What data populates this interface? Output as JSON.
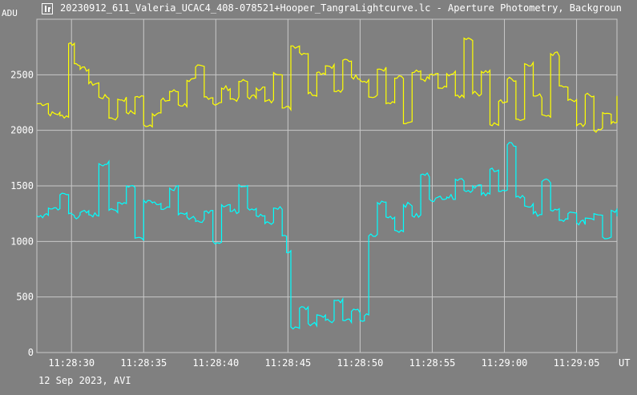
{
  "window": {
    "title": "20230912_611_Valeria_UCAC4_408-078521+Hooper_TangraLightcurve.lc - Aperture Photometry, Backgroun",
    "icon": "lightcurve-app-icon"
  },
  "footer": {
    "date_line": "12 Sep 2023, AVI"
  },
  "chart_data": {
    "type": "line",
    "ylabel": "ADU",
    "xlabel": "UT",
    "ylim": [
      0,
      3000
    ],
    "yticks": [
      0,
      500,
      1000,
      1500,
      2000,
      2500
    ],
    "xlim": [
      27.6,
      67.8
    ],
    "x_unit": "seconds after 11:28:00",
    "xticks": [
      {
        "value": 30,
        "label": "11:28:30"
      },
      {
        "value": 35,
        "label": "11:28:35"
      },
      {
        "value": 40,
        "label": "11:28:40"
      },
      {
        "value": 45,
        "label": "11:28:45"
      },
      {
        "value": 50,
        "label": "11:28:50"
      },
      {
        "value": 55,
        "label": "11:28:55"
      },
      {
        "value": 60,
        "label": "11:29:00"
      },
      {
        "value": 65,
        "label": "11:29:05"
      }
    ],
    "grid": true,
    "series": [
      {
        "color": "#ffff00",
        "x": [
          27.6,
          28.4,
          29.2,
          29.8,
          30.2,
          30.6,
          31.2,
          31.9,
          32.6,
          33.2,
          33.8,
          34.4,
          35.0,
          35.6,
          36.2,
          36.8,
          37.4,
          38.0,
          38.6,
          39.2,
          39.8,
          40.4,
          41.0,
          41.6,
          42.2,
          42.8,
          43.4,
          44.0,
          44.6,
          45.2,
          45.8,
          46.4,
          47.0,
          47.6,
          48.2,
          48.8,
          49.4,
          50.0,
          50.6,
          51.2,
          51.8,
          52.4,
          53.0,
          53.6,
          54.2,
          54.8,
          55.4,
          56.0,
          56.6,
          57.2,
          57.8,
          58.4,
          59.0,
          59.6,
          60.2,
          60.8,
          61.4,
          62.0,
          62.6,
          63.2,
          63.8,
          64.4,
          65.0,
          65.6,
          66.2,
          66.8,
          67.4,
          67.8
        ],
        "values": [
          2240,
          2150,
          2130,
          2780,
          2600,
          2550,
          2420,
          2300,
          2110,
          2280,
          2160,
          2300,
          2050,
          2150,
          2270,
          2350,
          2230,
          2450,
          2570,
          2300,
          2240,
          2380,
          2280,
          2440,
          2300,
          2380,
          2260,
          2520,
          2200,
          2760,
          2700,
          2330,
          2520,
          2580,
          2350,
          2630,
          2480,
          2450,
          2300,
          2550,
          2240,
          2470,
          2060,
          2520,
          2460,
          2500,
          2380,
          2510,
          2310,
          2830,
          2330,
          2530,
          2050,
          2260,
          2460,
          2100,
          2600,
          2310,
          2140,
          2690,
          2400,
          2270,
          2040,
          2320,
          2000,
          2160,
          2060,
          2300
        ]
      },
      {
        "color": "#00ffff",
        "x": [
          27.6,
          28.4,
          29.2,
          29.8,
          30.2,
          30.6,
          31.2,
          31.9,
          32.6,
          33.2,
          33.8,
          34.4,
          35.0,
          35.6,
          36.2,
          36.8,
          37.4,
          38.0,
          38.6,
          39.2,
          39.8,
          40.4,
          41.0,
          41.6,
          42.2,
          42.8,
          43.4,
          44.0,
          44.6,
          44.9,
          45.2,
          45.8,
          46.4,
          47.0,
          47.6,
          48.2,
          48.8,
          49.4,
          50.0,
          50.3,
          50.6,
          51.2,
          51.8,
          52.4,
          53.0,
          53.6,
          54.2,
          54.8,
          55.4,
          56.0,
          56.6,
          57.2,
          57.8,
          58.4,
          59.0,
          59.6,
          60.2,
          60.8,
          61.4,
          62.0,
          62.6,
          63.2,
          63.8,
          64.4,
          65.0,
          65.6,
          66.2,
          66.8,
          67.4,
          67.8
        ],
        "values": [
          1230,
          1300,
          1420,
          1250,
          1220,
          1260,
          1240,
          1700,
          1280,
          1350,
          1500,
          1030,
          1370,
          1350,
          1290,
          1480,
          1240,
          1220,
          1180,
          1270,
          1000,
          1330,
          1270,
          1510,
          1300,
          1230,
          1160,
          1300,
          1050,
          900,
          230,
          400,
          260,
          340,
          290,
          470,
          290,
          370,
          290,
          330,
          1050,
          1350,
          1220,
          1100,
          1330,
          1230,
          1600,
          1380,
          1400,
          1400,
          1560,
          1460,
          1500,
          1420,
          1650,
          1450,
          1870,
          1400,
          1320,
          1250,
          1540,
          1280,
          1190,
          1250,
          1170,
          1210,
          1250,
          1040,
          1280,
          1240
        ]
      }
    ]
  }
}
